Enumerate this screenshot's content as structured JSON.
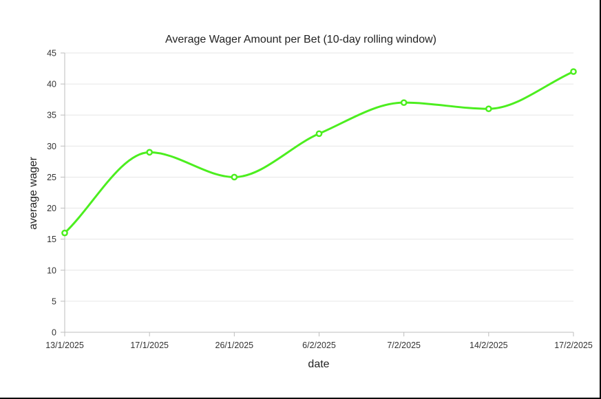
{
  "chart_data": {
    "type": "line",
    "title": "Average Wager Amount per Bet (10-day rolling window)",
    "xlabel": "date",
    "ylabel": "average wager",
    "categories": [
      "13/1/2025",
      "17/1/2025",
      "26/1/2025",
      "6/2/2025",
      "7/2/2025",
      "14/2/2025",
      "17/2/2025"
    ],
    "series": [
      {
        "values": [
          16,
          29,
          25,
          32,
          37,
          36,
          42
        ]
      }
    ],
    "ylim": [
      0,
      45
    ],
    "yticks": [
      0,
      5,
      10,
      15,
      20,
      25,
      30,
      35,
      40,
      45
    ],
    "grid": true,
    "line_color": "#4cee1f",
    "smooth": true
  }
}
